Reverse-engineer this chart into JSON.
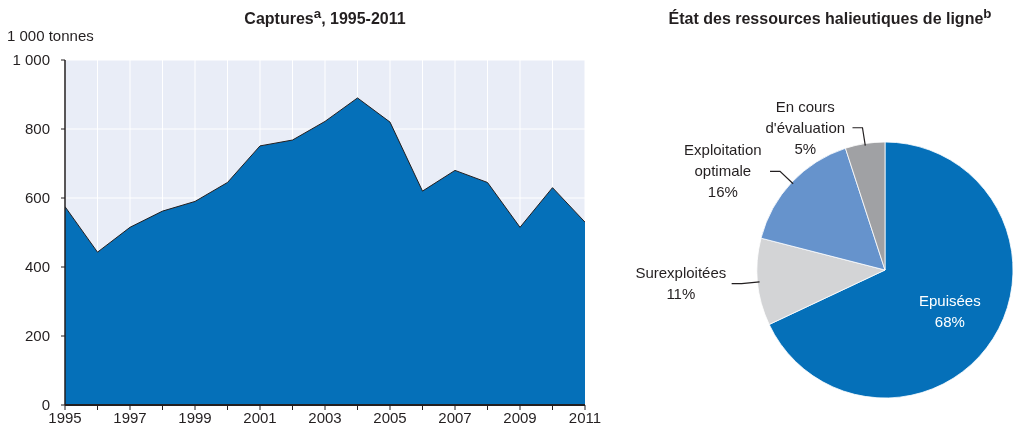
{
  "chart_data": [
    {
      "type": "area",
      "title": "Captures$^{a}$, 1995-2011",
      "ylabel": "1 000 tonnes",
      "x": [
        1995,
        1996,
        1997,
        1998,
        1999,
        2000,
        2001,
        2002,
        2003,
        2004,
        2005,
        2006,
        2007,
        2008,
        2009,
        2010,
        2011
      ],
      "values": [
        575,
        443,
        515,
        562,
        590,
        645,
        751,
        768,
        822,
        890,
        820,
        620,
        680,
        645,
        515,
        630,
        530
      ],
      "color": "#0570b9",
      "xlim": [
        1995,
        2011
      ],
      "xticks": [
        1995,
        {
          "value": 1996,
          "label": null
        },
        1997,
        {
          "value": 1998,
          "label": null
        },
        1999,
        {
          "value": 2000,
          "label": null
        },
        2001,
        {
          "value": 2002,
          "label": null
        },
        2003,
        {
          "value": 2004,
          "label": null
        },
        2005,
        {
          "value": 2006,
          "label": null
        },
        2007,
        {
          "value": 2008,
          "label": null
        },
        2009,
        {
          "value": 2010,
          "label": null
        },
        2011
      ],
      "ylim": [
        0,
        1000
      ],
      "yticks": [
        0,
        200,
        400,
        600,
        800,
        {
          "value": 1000,
          "label": "1 000"
        }
      ],
      "grid": true
    },
    {
      "type": "pie",
      "title": "État des ressources halieutiques de ligne$^{b}$",
      "categories": [
        "Epuisées",
        "Surexploitées",
        "Exploitation optimale",
        "En cours d'évaluation"
      ],
      "values": [
        68,
        11,
        16,
        5
      ],
      "colors": [
        "#0570b9",
        "#d3d4d6",
        "#6693cc",
        "#a0a1a4"
      ],
      "value_labels": [
        "68%",
        "11%",
        "16%",
        "5%"
      ]
    }
  ]
}
